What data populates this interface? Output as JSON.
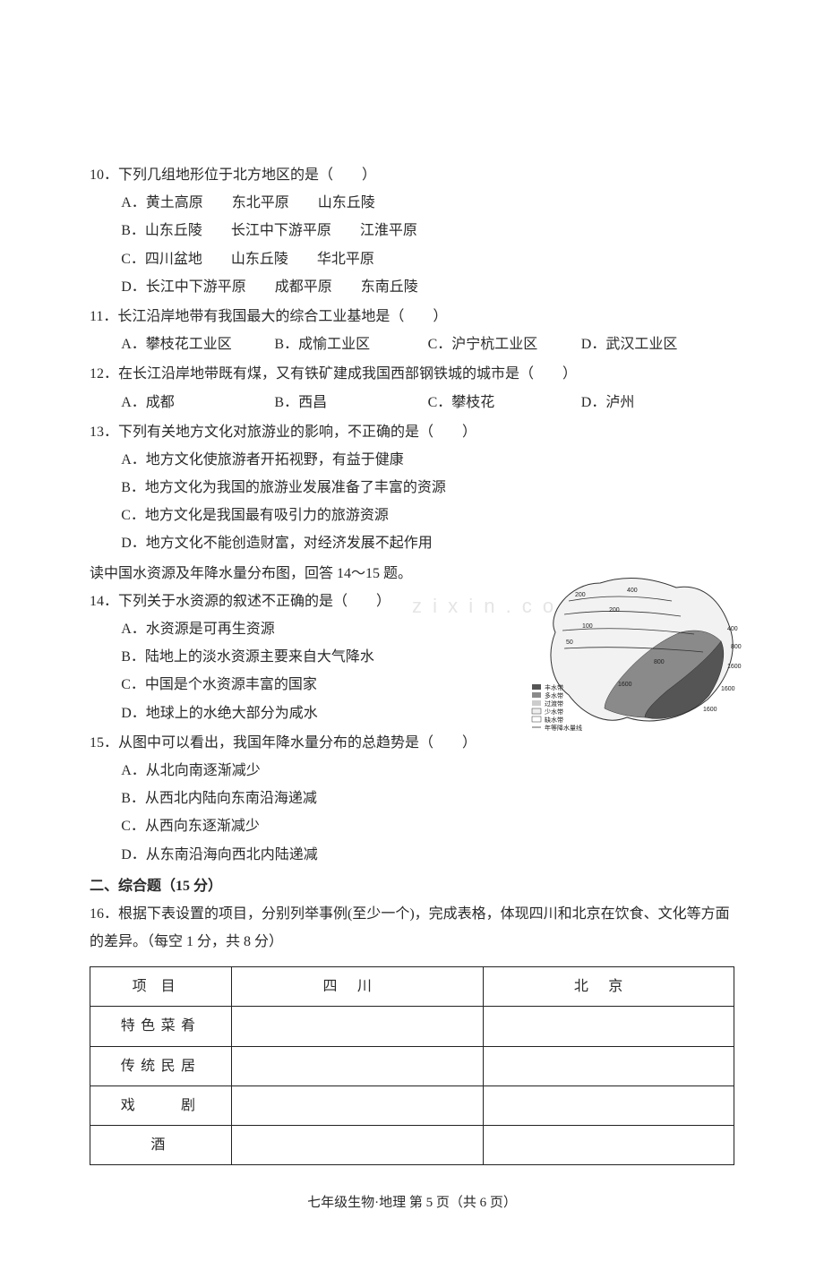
{
  "questions": [
    {
      "num": "10",
      "stem": "．下列几组地形位于北方地区的是（　　）",
      "opts": [
        "A．黄土高原　　东北平原　　山东丘陵",
        "B．山东丘陵　　长江中下游平原　　江淮平原",
        "C．四川盆地　　山东丘陵　　华北平原",
        "D．长江中下游平原　　成都平原　　东南丘陵"
      ],
      "layout": "stack"
    },
    {
      "num": "11",
      "stem": "．长江沿岸地带有我国最大的综合工业基地是（　　）",
      "opts": [
        "A．攀枝花工业区",
        "B．成愉工业区",
        "C．沪宁杭工业区",
        "D．武汉工业区"
      ],
      "layout": "row4"
    },
    {
      "num": "12",
      "stem": "．在长江沿岸地带既有煤，又有铁矿建成我国西部钢铁城的城市是（　　）",
      "opts": [
        "A．成都",
        "B．西昌",
        "C．攀枝花",
        "D．泸州"
      ],
      "layout": "row4"
    },
    {
      "num": "13",
      "stem": "．下列有关地方文化对旅游业的影响，不正确的是（　　）",
      "opts": [
        "A．地方文化使旅游者开拓视野，有益于健康",
        "B．地方文化为我国的旅游业发展准备了丰富的资源",
        "C．地方文化是我国最有吸引力的旅游资源",
        "D．地方文化不能创造财富，对经济发展不起作用"
      ],
      "layout": "stack"
    }
  ],
  "context_note": "读中国水资源及年降水量分布图，回答 14～15 题。",
  "q14": {
    "num": "14",
    "stem": "．下列关于水资源的叙述不正确的是（　　）",
    "opts": [
      "A．水资源是可再生资源",
      "B．陆地上的淡水资源主要来自大气降水",
      "C．中国是个水资源丰富的国家",
      "D．地球上的水绝大部分为咸水"
    ]
  },
  "q15": {
    "num": "15",
    "stem": "．从图中可以看出，我国年降水量分布的总趋势是（　　）",
    "opts": [
      "A．从北向南逐渐减少",
      "B．从西北内陆向东南沿海递减",
      "C．从西向东逐渐减少",
      "D．从东南沿海向西北内陆递减"
    ]
  },
  "section2": {
    "title": "二、综合题（15 分）",
    "q16_stem": "16．根据下表设置的项目，分别列举事例(至少一个)，完成表格，体现四川和北京在饮食、文化等方面的差异。（每空 1 分，共 8 分）"
  },
  "table": {
    "headers": {
      "project": "项目",
      "sichuan": "四川",
      "beijing": "北京"
    },
    "rows": [
      {
        "label": "特色菜肴",
        "sc": "",
        "bj": ""
      },
      {
        "label": "传统民居",
        "sc": "",
        "bj": ""
      },
      {
        "label": "戏　　剧",
        "sc": "",
        "bj": ""
      },
      {
        "label": "酒",
        "sc": "",
        "bj": ""
      }
    ]
  },
  "footer": "七年级生物·地理 第 5 页（共 6 页）",
  "map": {
    "contour_labels": [
      "50",
      "100",
      "200",
      "400",
      "500",
      "600",
      "800",
      "1200",
      "1600"
    ],
    "legend_items": [
      "丰水带",
      "多水带",
      "过渡带",
      "少水带",
      "缺水带",
      "年等降水量线"
    ],
    "outline_color": "#333333",
    "fill_dark": "#555555",
    "fill_mid": "#888888",
    "fill_light": "#dddddd",
    "label_fontsize": 7
  },
  "watermark": "z i x i n . c o"
}
